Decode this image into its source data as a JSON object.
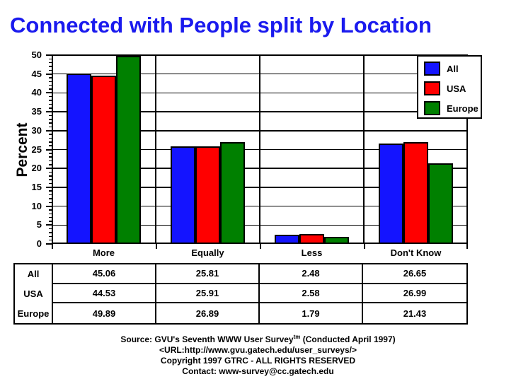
{
  "title": "Connected with People split by Location",
  "title_color": "#1a1aee",
  "chart_data": {
    "type": "bar",
    "title": "Connected with People split by Location",
    "categories": [
      "More",
      "Equally",
      "Less",
      "Don't Know"
    ],
    "series": [
      {
        "name": "All",
        "color": "#1414ff",
        "values": [
          45.06,
          25.81,
          2.48,
          26.65
        ]
      },
      {
        "name": "USA",
        "color": "#ff0000",
        "values": [
          44.53,
          25.91,
          2.58,
          26.99
        ]
      },
      {
        "name": "Europe",
        "color": "#008000",
        "values": [
          49.89,
          26.89,
          1.79,
          21.43
        ]
      }
    ],
    "xlabel": "",
    "ylabel": "Percent",
    "ylim": [
      0,
      50
    ],
    "ytick_step": 5,
    "yminor_step": 1,
    "grid": true,
    "legend_position": "top-right",
    "legend_entries": [
      "All",
      "USA",
      "Europe"
    ]
  },
  "footer": {
    "line1_prefix": "Source: GVU's Seventh WWW User Survey",
    "line1_sup": "tm",
    "line1_suffix": " (Conducted April 1997)",
    "line2": "<URL:http://www.gvu.gatech.edu/user_surveys/>",
    "line3": "Copyright 1997 GTRC - ALL RIGHTS RESERVED",
    "line4": "Contact: www-survey@cc.gatech.edu"
  }
}
